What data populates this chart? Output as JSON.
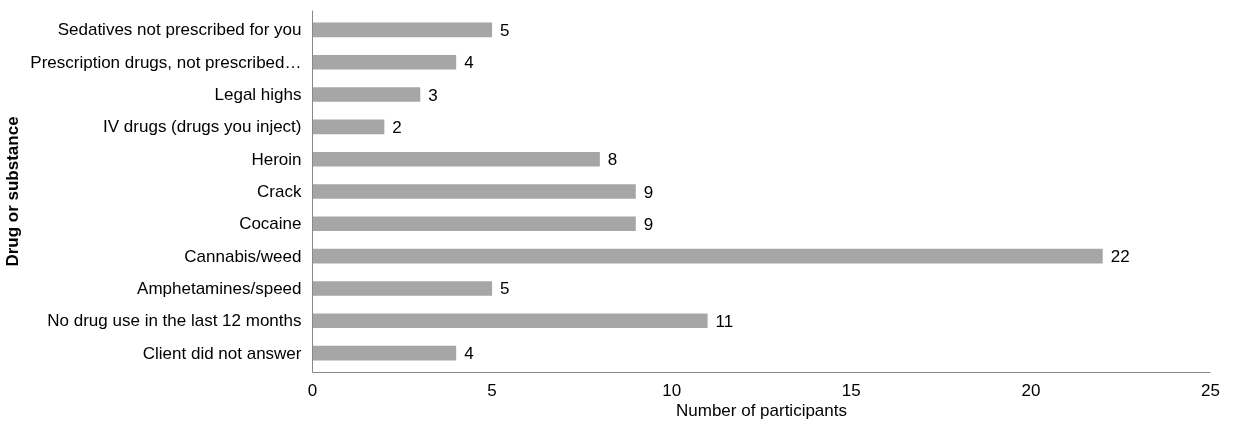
{
  "chart_data": {
    "type": "bar",
    "orientation": "horizontal",
    "xlabel": "Number of participants",
    "ylabel": "Drug or substance",
    "categories": [
      "Sedatives not prescribed for you",
      "Prescription drugs, not prescribed…",
      "Legal highs",
      "IV drugs (drugs you inject)",
      "Heroin",
      "Crack",
      "Cocaine",
      "Cannabis/weed",
      "Amphetamines/speed",
      "No drug use in the last 12 months",
      "Client did not answer"
    ],
    "values": [
      5,
      4,
      3,
      2,
      8,
      9,
      9,
      22,
      5,
      11,
      4
    ],
    "color": "#a6a6a6",
    "xlim": [
      0,
      25
    ],
    "xticks": [
      0,
      5,
      10,
      15,
      20,
      25
    ],
    "grid": false,
    "data_labels": true
  }
}
